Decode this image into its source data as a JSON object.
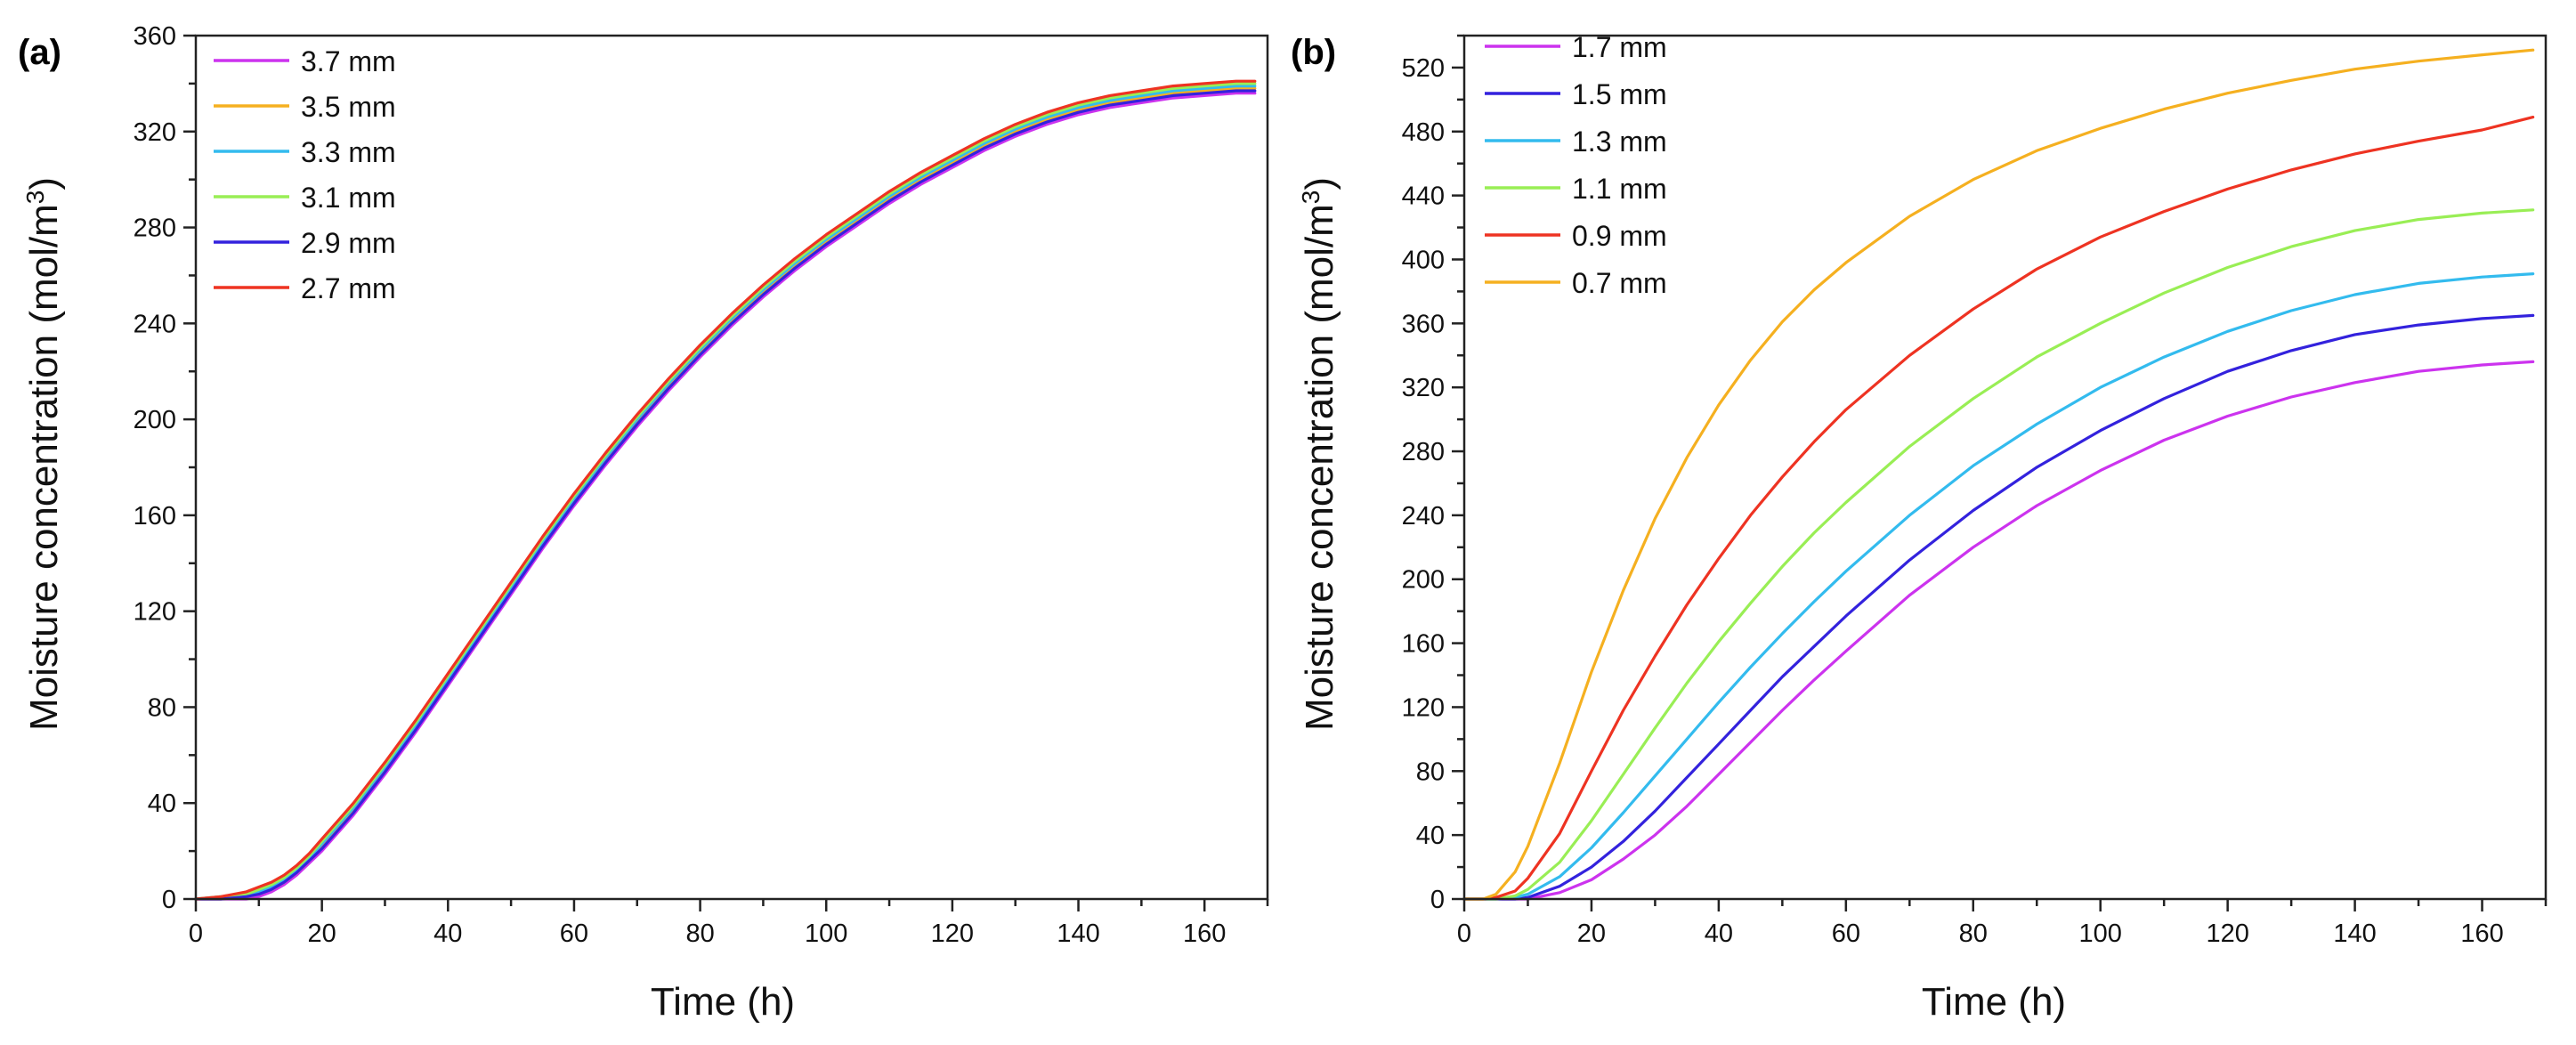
{
  "chart_data": [
    {
      "type": "line",
      "panel_label": "(a)",
      "xlabel": "Time (h)",
      "ylabel": "Moisture concentration (mol/m",
      "ylabel_sup": "3",
      "ylabel_close": ")",
      "xlim": [
        0,
        170
      ],
      "ylim": [
        0,
        360
      ],
      "xticks": [
        0,
        20,
        40,
        60,
        80,
        100,
        120,
        140,
        160
      ],
      "yticks": [
        0,
        40,
        80,
        120,
        160,
        200,
        240,
        280,
        320,
        360
      ],
      "legend_position": "top-left",
      "x": [
        0,
        4,
        8,
        10,
        12,
        14,
        16,
        18,
        20,
        25,
        30,
        35,
        40,
        45,
        50,
        55,
        60,
        65,
        70,
        75,
        80,
        85,
        90,
        95,
        100,
        105,
        110,
        115,
        120,
        125,
        130,
        135,
        140,
        145,
        150,
        155,
        160,
        165,
        168
      ],
      "series": [
        {
          "name": "3.7 mm",
          "color": "#cc33ee",
          "values": [
            0,
            0,
            0,
            1,
            3,
            6,
            10,
            15,
            20,
            35,
            52,
            70,
            89,
            108,
            127,
            146,
            164,
            181,
            197,
            212,
            226,
            239,
            251,
            262,
            272,
            281,
            290,
            298,
            305,
            312,
            318,
            323,
            327,
            330,
            332,
            334,
            335,
            336,
            336
          ]
        },
        {
          "name": "3.5 mm",
          "color": "#f5b020",
          "values": [
            0,
            0,
            1,
            2,
            4,
            7,
            11,
            16,
            22,
            37,
            54,
            72,
            91,
            110,
            129,
            148,
            166,
            183,
            199,
            214,
            228,
            241,
            253,
            264,
            274,
            283,
            292,
            300,
            307,
            314,
            320,
            325,
            329,
            332,
            334,
            336,
            337,
            338,
            338
          ]
        },
        {
          "name": "3.3 mm",
          "color": "#33bbee",
          "values": [
            0,
            1,
            2,
            3,
            5,
            8,
            12,
            17,
            23,
            38,
            55,
            73,
            92,
            111,
            130,
            149,
            167,
            184,
            200,
            215,
            229,
            242,
            254,
            265,
            275,
            284,
            293,
            301,
            308,
            315,
            321,
            326,
            330,
            333,
            335,
            337,
            338,
            339,
            339
          ]
        },
        {
          "name": "3.1 mm",
          "color": "#99ee55",
          "values": [
            0,
            1,
            2,
            4,
            6,
            9,
            13,
            18,
            24,
            39,
            56,
            74,
            93,
            112,
            131,
            150,
            168,
            185,
            201,
            216,
            230,
            243,
            255,
            266,
            276,
            285,
            294,
            302,
            309,
            316,
            322,
            327,
            331,
            334,
            336,
            338,
            339,
            340,
            340
          ]
        },
        {
          "name": "2.9 mm",
          "color": "#3322dd",
          "values": [
            0,
            0,
            1,
            2,
            4,
            7,
            11,
            16,
            21,
            36,
            53,
            71,
            90,
            109,
            128,
            147,
            165,
            182,
            198,
            213,
            227,
            240,
            252,
            263,
            273,
            282,
            291,
            299,
            306,
            313,
            319,
            324,
            328,
            331,
            333,
            335,
            336,
            337,
            337
          ]
        },
        {
          "name": "2.7 mm",
          "color": "#ee3322",
          "values": [
            0,
            1,
            3,
            5,
            7,
            10,
            14,
            19,
            25,
            40,
            57,
            75,
            94,
            113,
            132,
            151,
            169,
            186,
            202,
            217,
            231,
            244,
            256,
            267,
            277,
            286,
            295,
            303,
            310,
            317,
            323,
            328,
            332,
            335,
            337,
            339,
            340,
            341,
            341
          ]
        }
      ]
    },
    {
      "type": "line",
      "panel_label": "(b)",
      "xlabel": "Time (h)",
      "ylabel": "Moisture concentration (mol/m",
      "ylabel_sup": "3",
      "ylabel_close": ")",
      "xlim": [
        0,
        170
      ],
      "ylim": [
        0,
        540
      ],
      "xticks": [
        0,
        20,
        40,
        60,
        80,
        100,
        120,
        140,
        160
      ],
      "yticks": [
        0,
        40,
        80,
        120,
        160,
        200,
        240,
        280,
        320,
        360,
        400,
        440,
        480,
        520
      ],
      "legend_position": "top-left",
      "x": [
        0,
        3,
        5,
        8,
        10,
        15,
        20,
        25,
        30,
        35,
        40,
        45,
        50,
        55,
        60,
        70,
        80,
        90,
        100,
        110,
        120,
        130,
        140,
        150,
        160,
        168
      ],
      "series": [
        {
          "name": "1.7 mm",
          "color": "#cc33ee",
          "values": [
            0,
            0,
            0,
            0,
            0,
            4,
            12,
            25,
            40,
            58,
            78,
            98,
            118,
            137,
            155,
            190,
            220,
            246,
            268,
            287,
            302,
            314,
            323,
            330,
            334,
            336
          ]
        },
        {
          "name": "1.5 mm",
          "color": "#3322dd",
          "values": [
            0,
            0,
            0,
            0,
            1,
            8,
            20,
            36,
            55,
            76,
            97,
            118,
            139,
            158,
            177,
            212,
            243,
            270,
            293,
            313,
            330,
            343,
            353,
            359,
            363,
            365
          ]
        },
        {
          "name": "1.3 mm",
          "color": "#33bbee",
          "values": [
            0,
            0,
            0,
            1,
            3,
            14,
            32,
            54,
            77,
            100,
            123,
            145,
            166,
            186,
            205,
            240,
            271,
            297,
            320,
            339,
            355,
            368,
            378,
            385,
            389,
            391
          ]
        },
        {
          "name": "1.1 mm",
          "color": "#99ee55",
          "values": [
            0,
            0,
            0,
            2,
            6,
            23,
            49,
            78,
            107,
            135,
            161,
            185,
            208,
            229,
            248,
            283,
            313,
            339,
            360,
            379,
            395,
            408,
            418,
            425,
            429,
            431
          ]
        },
        {
          "name": "0.9 mm",
          "color": "#ee3322",
          "values": [
            0,
            0,
            1,
            5,
            13,
            41,
            80,
            118,
            152,
            184,
            213,
            240,
            264,
            286,
            306,
            340,
            369,
            394,
            414,
            430,
            444,
            456,
            466,
            474,
            481,
            489
          ]
        },
        {
          "name": "0.7 mm",
          "color": "#f5b020",
          "values": [
            0,
            0,
            3,
            17,
            33,
            85,
            142,
            193,
            238,
            276,
            309,
            337,
            361,
            381,
            398,
            427,
            450,
            468,
            482,
            494,
            504,
            512,
            519,
            524,
            528,
            531
          ]
        }
      ]
    }
  ]
}
